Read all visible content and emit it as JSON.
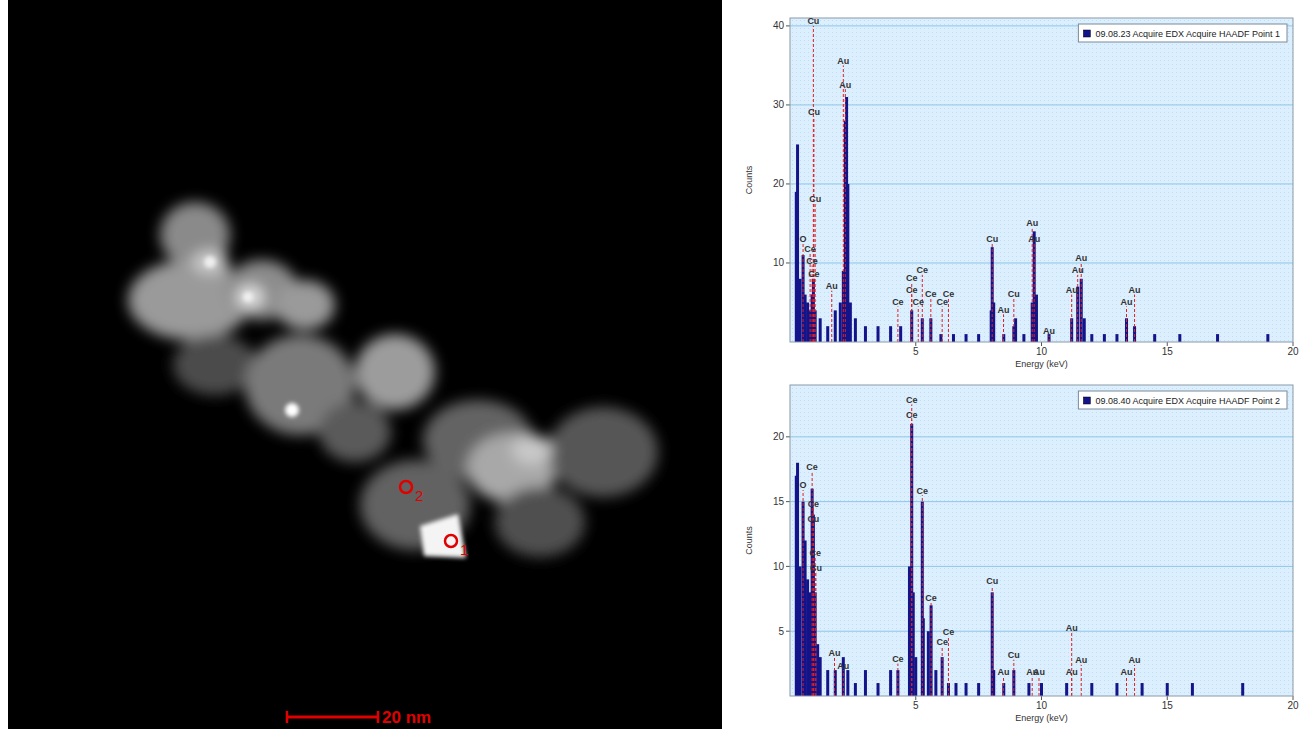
{
  "image": {
    "scale_bar": "20 nm",
    "points": [
      {
        "label": "1"
      },
      {
        "label": "2"
      }
    ]
  },
  "chart_data": [
    {
      "type": "bar",
      "x_label": "Energy (keV)",
      "y_label": "Counts",
      "xlim": [
        0,
        20
      ],
      "xticks": [
        5,
        10,
        15,
        20
      ],
      "ylim": [
        0,
        41
      ],
      "yticks": [
        10,
        20,
        30,
        40
      ],
      "grid": true,
      "legend": "upper right",
      "x": [
        0.25,
        0.3,
        0.4,
        0.52,
        0.6,
        0.7,
        0.8,
        0.88,
        0.93,
        1.0,
        1.2,
        1.5,
        1.8,
        2.0,
        2.12,
        2.2,
        2.25,
        2.3,
        2.4,
        2.6,
        3.0,
        3.5,
        4.0,
        4.4,
        4.84,
        5.26,
        5.6,
        6.0,
        6.5,
        7.0,
        7.5,
        8.0,
        8.04,
        8.1,
        8.5,
        8.9,
        8.97,
        9.3,
        9.63,
        9.71,
        9.8,
        10.3,
        11.2,
        11.44,
        11.58,
        11.7,
        12.0,
        12.5,
        13.0,
        13.38,
        13.7,
        14.5,
        15.5,
        17.0,
        19.0
      ],
      "series": [
        {
          "name": "09.08.23 Acquire EDX Acquire HAADF Point 1",
          "color": "#14148a",
          "values": [
            19,
            25,
            8,
            11,
            6,
            5,
            4,
            6,
            8,
            4,
            3,
            2,
            4,
            5,
            9,
            28,
            31,
            20,
            5,
            3,
            2,
            2,
            2,
            2,
            4,
            3,
            3,
            1,
            1,
            1,
            1,
            4,
            12,
            5,
            1,
            2,
            3,
            1,
            5,
            14,
            6,
            1,
            3,
            7,
            8,
            3,
            1,
            1,
            1,
            3,
            2,
            1,
            1,
            1,
            1
          ]
        }
      ],
      "annotations": [
        {
          "label": "O",
          "x": 0.52,
          "y": 12.5
        },
        {
          "label": "Ce",
          "x": 0.8,
          "y": 11.2
        },
        {
          "label": "Ce",
          "x": 0.88,
          "y": 9.7
        },
        {
          "label": "Ce",
          "x": 0.95,
          "y": 8
        },
        {
          "label": "Cu",
          "x": 0.93,
          "y": 40
        },
        {
          "label": "Cu",
          "x": 0.95,
          "y": 28.5
        },
        {
          "label": "Cu",
          "x": 1.0,
          "y": 17.5
        },
        {
          "label": "Au",
          "x": 1.66,
          "y": 6.5
        },
        {
          "label": "Au",
          "x": 2.12,
          "y": 35
        },
        {
          "label": "Au",
          "x": 2.2,
          "y": 32
        },
        {
          "label": "Ce",
          "x": 4.29,
          "y": 4.5
        },
        {
          "label": "Ce",
          "x": 4.84,
          "y": 7.5
        },
        {
          "label": "Ce",
          "x": 4.84,
          "y": 6
        },
        {
          "label": "Ce",
          "x": 5.26,
          "y": 8.5
        },
        {
          "label": "Ce",
          "x": 5.1,
          "y": 4.5
        },
        {
          "label": "Ce",
          "x": 5.6,
          "y": 5.5
        },
        {
          "label": "Ce",
          "x": 6.05,
          "y": 4.5
        },
        {
          "label": "Ce",
          "x": 6.3,
          "y": 5.5
        },
        {
          "label": "Cu",
          "x": 8.04,
          "y": 12.5
        },
        {
          "label": "Au",
          "x": 8.49,
          "y": 3.5
        },
        {
          "label": "Cu",
          "x": 8.9,
          "y": 5.5
        },
        {
          "label": "Au",
          "x": 9.63,
          "y": 14.5
        },
        {
          "label": "Au",
          "x": 9.71,
          "y": 12.5
        },
        {
          "label": "Au",
          "x": 10.3,
          "y": 0.8
        },
        {
          "label": "Au",
          "x": 11.2,
          "y": 6
        },
        {
          "label": "Au",
          "x": 11.44,
          "y": 8.5
        },
        {
          "label": "Au",
          "x": 11.58,
          "y": 10
        },
        {
          "label": "Au",
          "x": 13.38,
          "y": 4.5
        },
        {
          "label": "Au",
          "x": 13.7,
          "y": 6
        }
      ]
    },
    {
      "type": "bar",
      "x_label": "Energy (keV)",
      "y_label": "Counts",
      "xlim": [
        0,
        20
      ],
      "xticks": [
        5,
        10,
        15,
        20
      ],
      "ylim": [
        0,
        24
      ],
      "yticks": [
        5,
        10,
        15,
        20
      ],
      "grid": true,
      "legend": "upper right",
      "x": [
        0.25,
        0.3,
        0.4,
        0.52,
        0.6,
        0.7,
        0.8,
        0.88,
        0.93,
        1.0,
        1.1,
        1.2,
        1.5,
        1.8,
        2.12,
        2.3,
        2.6,
        3.0,
        3.5,
        4.0,
        4.29,
        4.75,
        4.84,
        4.9,
        5.0,
        5.26,
        5.3,
        5.5,
        5.61,
        5.8,
        6.05,
        6.3,
        6.6,
        7.0,
        7.5,
        8.04,
        8.1,
        8.5,
        8.9,
        9.5,
        10.0,
        11.0,
        12.0,
        13.0,
        14.0,
        15.0,
        16.0,
        18.0
      ],
      "series": [
        {
          "name": "09.08.40 Acquire EDX Acquire HAADF Point 2",
          "color": "#14148a",
          "values": [
            17,
            18,
            10,
            15,
            12,
            9,
            8,
            16,
            14,
            8,
            4,
            3,
            2,
            2,
            3,
            2,
            1,
            2,
            1,
            2,
            2,
            10,
            21,
            8,
            3,
            15,
            6,
            5,
            7,
            2,
            3,
            1,
            1,
            1,
            1,
            8,
            2,
            1,
            2,
            1,
            1,
            1,
            1,
            1,
            1,
            1,
            1,
            1
          ]
        }
      ],
      "annotations": [
        {
          "label": "Ce",
          "x": 0.88,
          "y": 17.3
        },
        {
          "label": "O",
          "x": 0.52,
          "y": 15.9
        },
        {
          "label": "Ce",
          "x": 0.93,
          "y": 14.5
        },
        {
          "label": "Cu",
          "x": 0.93,
          "y": 13.3
        },
        {
          "label": "Ce",
          "x": 1.0,
          "y": 10.7
        },
        {
          "label": "Cu",
          "x": 1.03,
          "y": 9.5
        },
        {
          "label": "Au",
          "x": 1.77,
          "y": 3
        },
        {
          "label": "Au",
          "x": 2.12,
          "y": 2
        },
        {
          "label": "Ce",
          "x": 4.29,
          "y": 2.5
        },
        {
          "label": "Ce",
          "x": 4.84,
          "y": 22.5
        },
        {
          "label": "Ce",
          "x": 4.84,
          "y": 21.3
        },
        {
          "label": "Ce",
          "x": 5.26,
          "y": 15.5
        },
        {
          "label": "Ce",
          "x": 5.61,
          "y": 7.2
        },
        {
          "label": "Ce",
          "x": 6.05,
          "y": 3.8
        },
        {
          "label": "Ce",
          "x": 6.3,
          "y": 4.6
        },
        {
          "label": "Cu",
          "x": 8.04,
          "y": 8.5
        },
        {
          "label": "Au",
          "x": 8.49,
          "y": 1.5
        },
        {
          "label": "Cu",
          "x": 8.9,
          "y": 2.8
        },
        {
          "label": "Au",
          "x": 9.63,
          "y": 1.5
        },
        {
          "label": "Au",
          "x": 9.9,
          "y": 1.5
        },
        {
          "label": "Au",
          "x": 11.2,
          "y": 4.9
        },
        {
          "label": "Au",
          "x": 11.58,
          "y": 2.4
        },
        {
          "label": "Au",
          "x": 11.2,
          "y": 1.5
        },
        {
          "label": "Au",
          "x": 13.38,
          "y": 1.5
        },
        {
          "label": "Au",
          "x": 13.7,
          "y": 2.4
        }
      ]
    }
  ]
}
